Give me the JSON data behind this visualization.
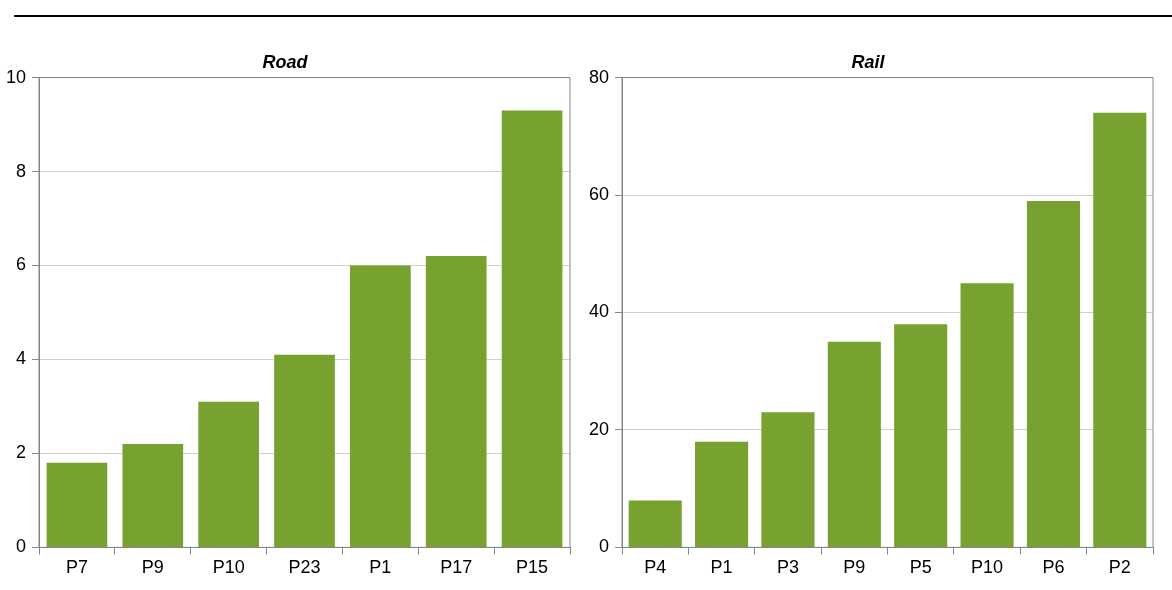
{
  "chart_data": [
    {
      "type": "bar",
      "title": "Road",
      "categories": [
        "P7",
        "P9",
        "P10",
        "P23",
        "P1",
        "P17",
        "P15"
      ],
      "values": [
        1.8,
        2.2,
        3.1,
        4.1,
        6.0,
        6.2,
        9.3
      ],
      "color": "#77a22f",
      "ylim": [
        0,
        10
      ],
      "yticks": [
        0,
        2,
        4,
        6,
        8,
        10
      ],
      "grid": "y",
      "legend": false
    },
    {
      "type": "bar",
      "title": "Rail",
      "categories": [
        "P4",
        "P1",
        "P3",
        "P9",
        "P5",
        "P10",
        "P6",
        "P2"
      ],
      "values": [
        8,
        18,
        23,
        35,
        38,
        45,
        59,
        74
      ],
      "color": "#77a22f",
      "ylim": [
        0,
        80
      ],
      "yticks": [
        0,
        20,
        40,
        60,
        80
      ],
      "grid": "y",
      "legend": false
    }
  ]
}
